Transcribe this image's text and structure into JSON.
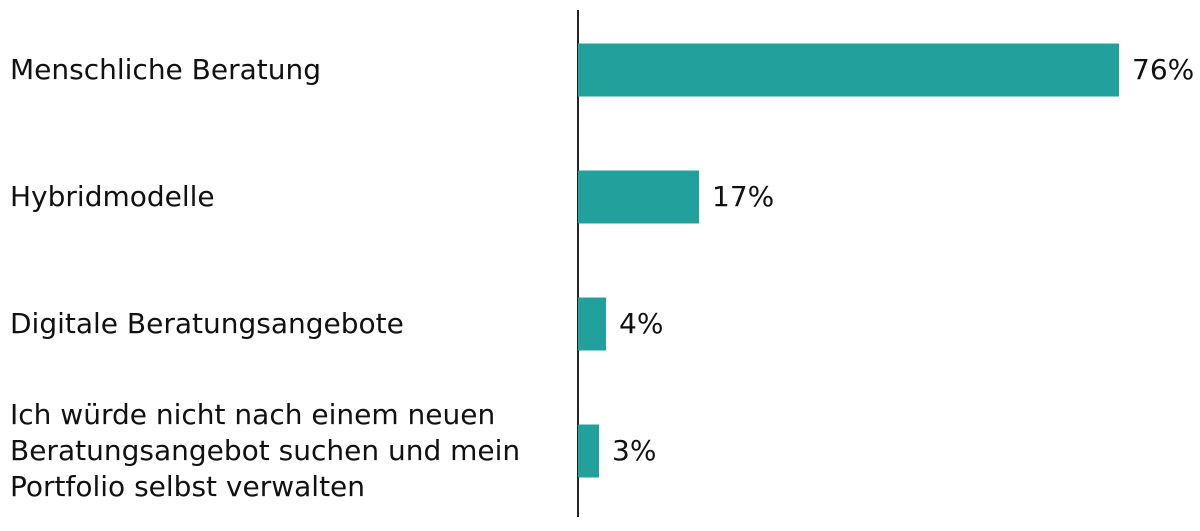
{
  "chart_data": {
    "type": "bar",
    "orientation": "horizontal",
    "categories": [
      "Menschliche Beratung",
      "Hybridmodelle",
      "Digitale Beratungsangebote",
      "Ich würde nicht nach einem neuen\nBeratungsangebot suchen und mein\nPortfolio selbst verwalten"
    ],
    "values": [
      76,
      17,
      4,
      3
    ],
    "value_labels": [
      "76%",
      "17%",
      "4%",
      "3%"
    ],
    "unit": "%",
    "xlim": [
      0,
      76
    ],
    "bar_color": "#22a09b",
    "axis_color": "#222222",
    "grid": false,
    "legend": "none"
  }
}
